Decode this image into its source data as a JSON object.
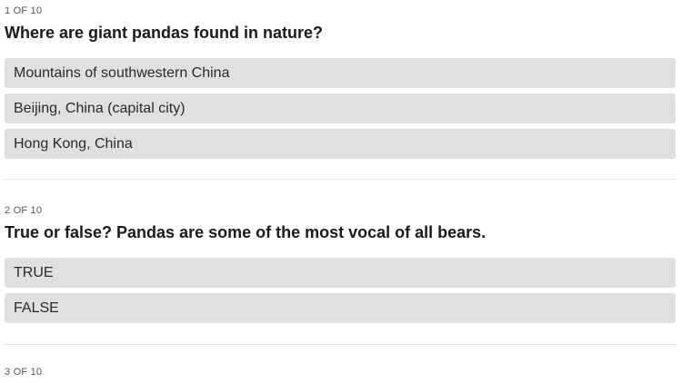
{
  "questions": [
    {
      "counter": "1 OF 10",
      "title": "Where are giant pandas found in nature?",
      "options": [
        "Mountains of southwestern China",
        "Beijing, China (capital city)",
        "Hong Kong, China"
      ]
    },
    {
      "counter": "2 OF 10",
      "title": "True or false? Pandas are some of the most vocal of all bears.",
      "options": [
        "TRUE",
        "FALSE"
      ]
    },
    {
      "counter": "3 OF 10"
    }
  ]
}
